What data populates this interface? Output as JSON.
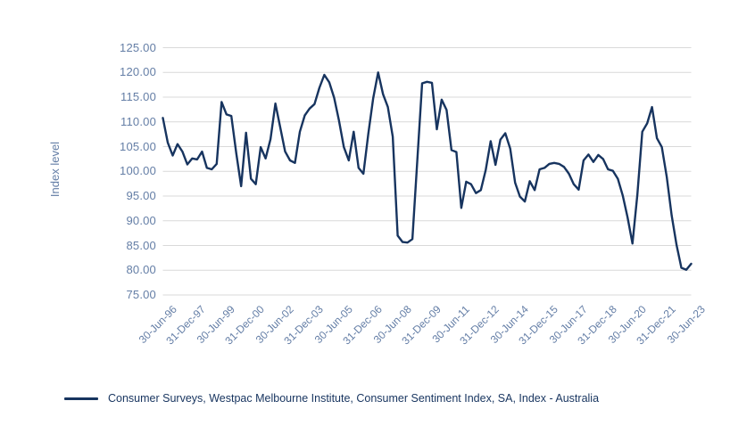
{
  "chart_data": {
    "type": "line",
    "title": "",
    "xlabel": "",
    "ylabel": "Index level",
    "ylim": [
      75,
      125
    ],
    "y_tick_step": 5,
    "y_tick_labels": [
      "125.00",
      "120.00",
      "115.00",
      "110.00",
      "105.00",
      "100.00",
      "95.00",
      "90.00",
      "85.00",
      "80.00",
      "75.00"
    ],
    "x_tick_labels": [
      "30-Jun-96",
      "31-Dec-97",
      "30-Jun-99",
      "31-Dec-00",
      "30-Jun-02",
      "31-Dec-03",
      "30-Jun-05",
      "31-Dec-06",
      "30-Jun-08",
      "31-Dec-09",
      "30-Jun-11",
      "31-Dec-12",
      "30-Jun-14",
      "31-Dec-15",
      "30-Jun-17",
      "31-Dec-18",
      "30-Jun-20",
      "31-Dec-21",
      "30-Jun-23"
    ],
    "x_tick_every": 6,
    "grid": "horizontal",
    "grid_color": "#d9d9d9",
    "label_color": "#647ea6",
    "legend_position": "bottom-left",
    "series": [
      {
        "name": "Consumer Surveys, Westpac Melbourne Institute, Consumer Sentiment Index, SA, Index - Australia",
        "color": "#17345f",
        "frequency": "quarterly",
        "start": "30-Jun-96",
        "end": "30-Jun-23",
        "values": [
          110.8,
          105.8,
          103.2,
          105.5,
          104.0,
          101.4,
          102.6,
          102.4,
          104.0,
          100.7,
          100.4,
          101.5,
          114.0,
          111.5,
          111.2,
          103.7,
          97.0,
          107.8,
          98.5,
          97.4,
          104.9,
          102.6,
          106.5,
          113.7,
          108.8,
          104.0,
          102.2,
          101.7,
          108.0,
          111.3,
          112.7,
          113.6,
          116.9,
          119.5,
          118.0,
          114.9,
          110.3,
          104.9,
          102.2,
          108.0,
          100.7,
          99.5,
          107.6,
          114.8,
          120.0,
          115.6,
          113.0,
          107.0,
          87.0,
          85.7,
          85.6,
          86.3,
          101.9,
          117.8,
          118.1,
          117.9,
          108.5,
          114.5,
          112.4,
          104.3,
          103.9,
          92.6,
          97.9,
          97.4,
          95.6,
          96.2,
          100.3,
          106.1,
          101.3,
          106.4,
          107.7,
          104.6,
          97.7,
          94.9,
          93.9,
          98.0,
          96.2,
          100.4,
          100.7,
          101.5,
          101.7,
          101.5,
          100.9,
          99.5,
          97.4,
          96.3,
          102.2,
          103.4,
          101.9,
          103.3,
          102.5,
          100.4,
          100.1,
          98.5,
          95.1,
          90.7,
          85.4,
          95.3,
          108.0,
          109.7,
          113.0,
          106.7,
          104.9,
          98.9,
          91.1,
          85.1,
          80.5,
          80.1,
          81.3
        ]
      }
    ]
  }
}
